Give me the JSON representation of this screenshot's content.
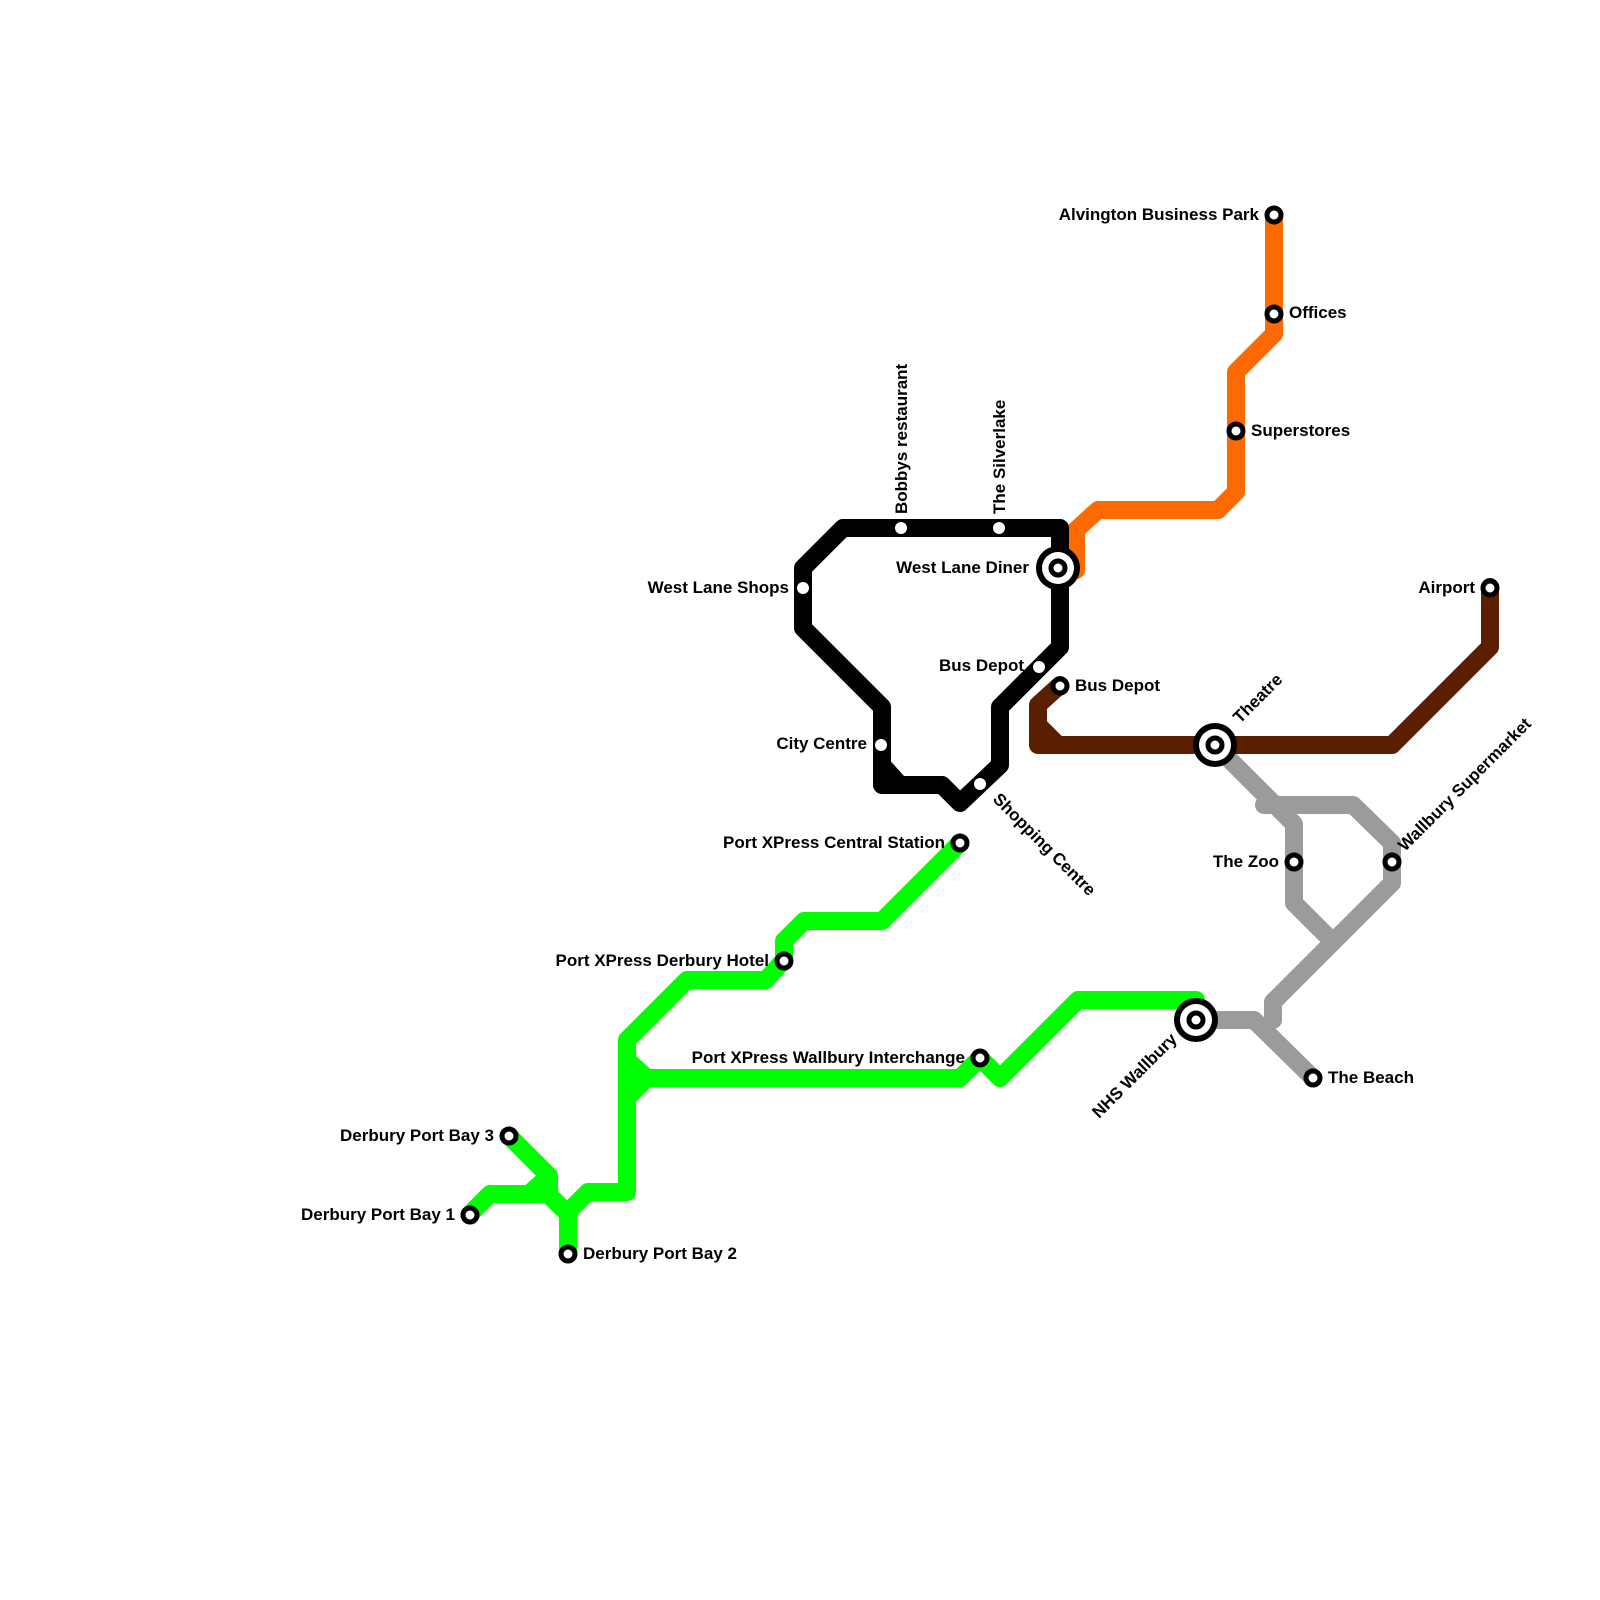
{
  "lines": {
    "black": {
      "color": "#000000"
    },
    "orange": {
      "color": "#ff6a00"
    },
    "brown": {
      "color": "#5a1e00"
    },
    "gray": {
      "color": "#9b9b9b"
    },
    "green": {
      "color": "#00ff00"
    }
  },
  "stations": {
    "bobbys": "Bobbys restaurant",
    "silverlake": "The Silverlake",
    "west_lane_shops": "West Lane Shops",
    "west_lane_diner": "West Lane Diner",
    "bus_depot_black": "Bus Depot",
    "bus_depot_brown": "Bus Depot",
    "city_centre": "City Centre",
    "shopping_centre": "Shopping Centre",
    "alvington": "Alvington Business Park",
    "offices": "Offices",
    "superstores": "Superstores",
    "airport": "Airport",
    "theatre": "Theatre",
    "wallbury_supermarket": "Wallbury Supermarket",
    "zoo": "The Zoo",
    "nhs_wallbury": "NHS Wallbury",
    "beach": "The Beach",
    "px_central": "Port XPress Central Station",
    "px_derbury_hotel": "Port XPress Derbury Hotel",
    "px_wallbury": "Port XPress Wallbury Interchange",
    "bay3": "Derbury Port Bay 3",
    "bay1": "Derbury Port Bay 1",
    "bay2": "Derbury Port Bay 2"
  }
}
